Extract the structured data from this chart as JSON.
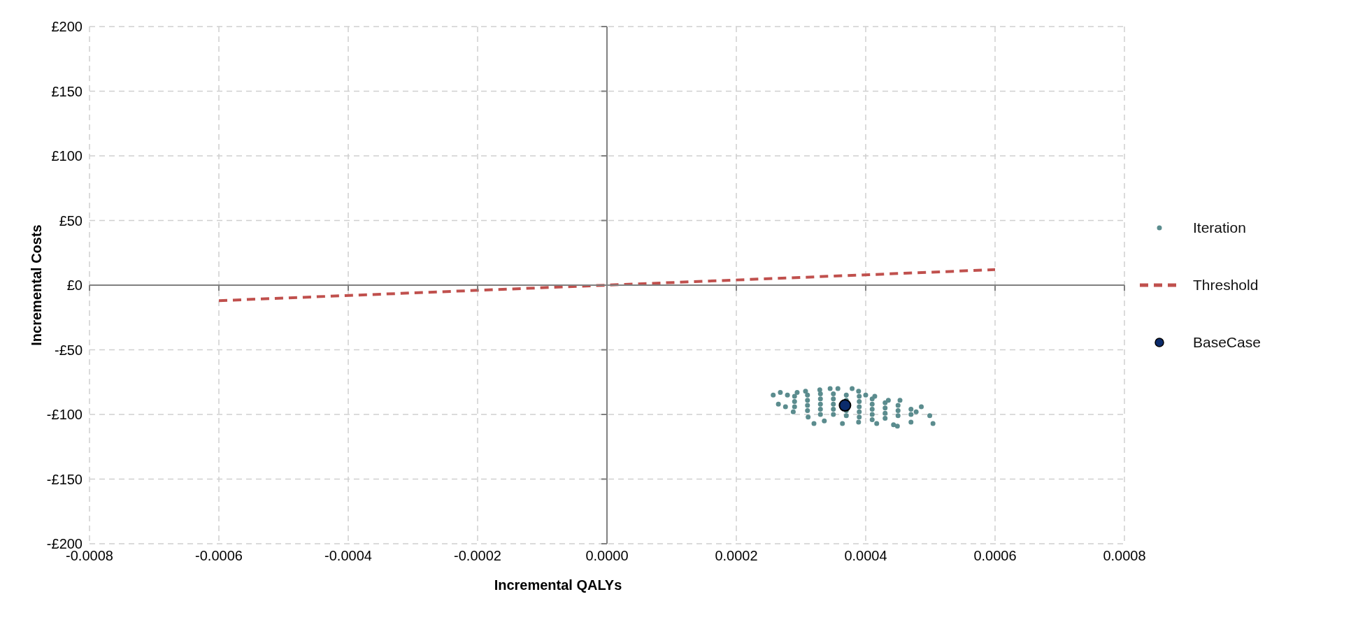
{
  "chart_data": {
    "type": "scatter",
    "xlabel": "Incremental QALYs",
    "ylabel": "Incremental Costs",
    "xlim": [
      -0.0008,
      0.0008
    ],
    "ylim": [
      -200,
      200
    ],
    "xticks": [
      {
        "value": -0.0008,
        "label": "-0.0008"
      },
      {
        "value": -0.0006,
        "label": "-0.0006"
      },
      {
        "value": -0.0004,
        "label": "-0.0004"
      },
      {
        "value": -0.0002,
        "label": "-0.0002"
      },
      {
        "value": 0,
        "label": "0.0000"
      },
      {
        "value": 0.0002,
        "label": "0.0002"
      },
      {
        "value": 0.0004,
        "label": "0.0004"
      },
      {
        "value": 0.0006,
        "label": "0.0006"
      },
      {
        "value": 0.0008,
        "label": "0.0008"
      }
    ],
    "yticks": [
      {
        "value": -200,
        "label": "-£200"
      },
      {
        "value": -150,
        "label": "-£150"
      },
      {
        "value": -100,
        "label": "-£100"
      },
      {
        "value": -50,
        "label": "-£50"
      },
      {
        "value": 0,
        "label": "£0"
      },
      {
        "value": 50,
        "label": "£50"
      },
      {
        "value": 100,
        "label": "£100"
      },
      {
        "value": 150,
        "label": "£150"
      },
      {
        "value": 200,
        "label": "£200"
      }
    ],
    "grid": true,
    "legend": "right",
    "marker": "circle",
    "series": [
      {
        "name": "Iteration",
        "type": "scatter",
        "color": "#5b8c8e",
        "x": [
          0.000257,
          0.000268,
          0.000279,
          0.000294,
          0.000307,
          0.000329,
          0.000345,
          0.000357,
          0.000379,
          0.000389,
          0.000265,
          0.000276,
          0.000288,
          0.000311,
          0.00032,
          0.000336,
          0.000364,
          0.000389,
          0.000417,
          0.000443,
          0.000449,
          0.00047,
          0.000486,
          0.000499,
          0.000504,
          0.000478,
          0.000453,
          0.000435,
          0.000414,
          0.0004,
          0.00029,
          0.00029,
          0.00029,
          0.00031,
          0.00031,
          0.00031,
          0.00031,
          0.00033,
          0.00033,
          0.00033,
          0.00033,
          0.00033,
          0.00035,
          0.00035,
          0.00035,
          0.00035,
          0.00035,
          0.00037,
          0.00037,
          0.00037,
          0.00037,
          0.00039,
          0.00039,
          0.00039,
          0.00039,
          0.00039,
          0.00041,
          0.00041,
          0.00041,
          0.00041,
          0.00041,
          0.00043,
          0.00043,
          0.00043,
          0.00043,
          0.00045,
          0.00045,
          0.00045,
          0.00047,
          0.00047
        ],
        "values": [
          -85,
          -83,
          -85,
          -83,
          -82,
          -81,
          -80,
          -80,
          -80,
          -82,
          -92,
          -94,
          -98,
          -102,
          -107,
          -105,
          -107,
          -106,
          -107,
          -108,
          -109,
          -106,
          -94,
          -101,
          -107,
          -98,
          -89,
          -89,
          -86,
          -85,
          -86,
          -90,
          -94,
          -85,
          -89,
          -93,
          -97,
          -84,
          -88,
          -92,
          -96,
          -100,
          -84,
          -88,
          -92,
          -96,
          -100,
          -85,
          -89,
          -97,
          -101,
          -86,
          -90,
          -94,
          -98,
          -102,
          -88,
          -92,
          -96,
          -100,
          -104,
          -91,
          -95,
          -99,
          -103,
          -93,
          -97,
          -101,
          -96,
          -100
        ]
      },
      {
        "name": "Threshold",
        "type": "line",
        "color": "#c0504d",
        "line_style": "dashed",
        "marker": "none",
        "x": [
          -0.0006,
          0.0006
        ],
        "values": [
          -12,
          12
        ]
      },
      {
        "name": "BaseCase",
        "type": "scatter",
        "color": "#0b2b6b",
        "x": [
          0.000368
        ],
        "values": [
          -93
        ]
      }
    ]
  }
}
